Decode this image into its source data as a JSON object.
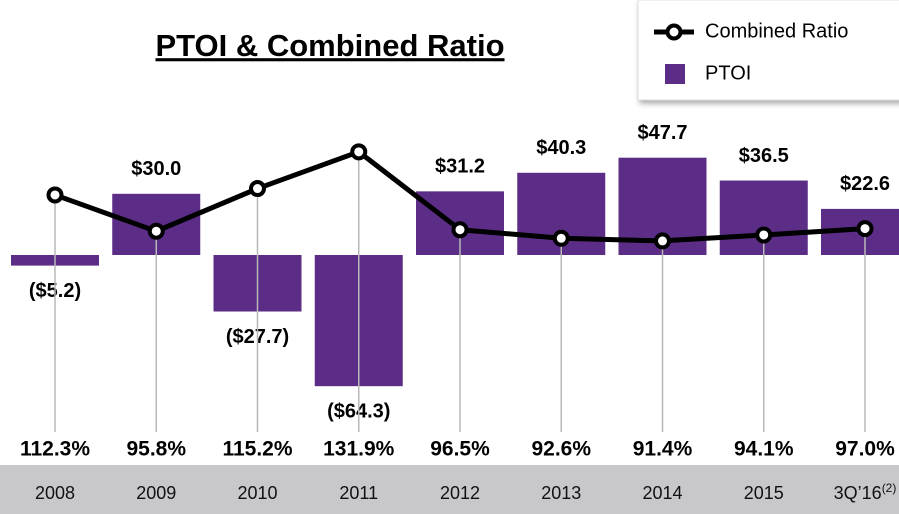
{
  "chart_data": {
    "type": "combo",
    "title": "PTOI & Combined Ratio",
    "categories": [
      "2008",
      "2009",
      "2010",
      "2011",
      "2012",
      "2013",
      "2014",
      "2015",
      "3Q’16"
    ],
    "category_notes": [
      null,
      null,
      null,
      null,
      null,
      null,
      null,
      null,
      "(2)"
    ],
    "legend": "top-right",
    "series": [
      {
        "name": "Combined Ratio",
        "type": "line",
        "color": "#000000",
        "values": [
          112.3,
          95.8,
          115.2,
          131.9,
          96.5,
          92.6,
          91.4,
          94.1,
          97.0
        ],
        "value_labels": [
          "112.3%",
          "95.8%",
          "115.2%",
          "131.9%",
          "96.5%",
          "92.6%",
          "91.4%",
          "94.1%",
          "97.0%"
        ]
      },
      {
        "name": "PTOI",
        "type": "bar",
        "color": "#5c2d87",
        "values": [
          -5.2,
          30.0,
          -27.7,
          -64.3,
          31.2,
          40.3,
          47.7,
          36.5,
          22.6
        ],
        "value_labels": [
          "($5.2)",
          "$30.0",
          "($27.7)",
          "($64.3)",
          "$31.2",
          "$40.3",
          "$47.7",
          "$36.5",
          "$22.6"
        ]
      }
    ]
  }
}
